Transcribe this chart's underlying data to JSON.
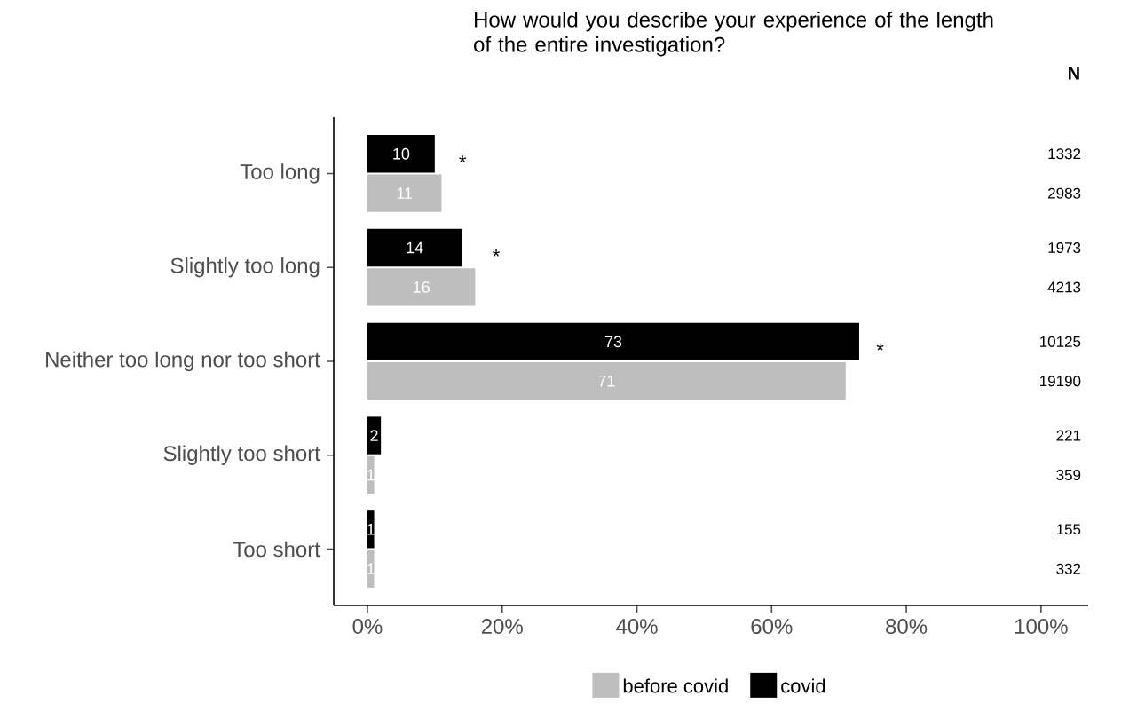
{
  "chart_data": {
    "type": "bar",
    "orientation": "horizontal",
    "title": "How would you describe your experience of the length of the entire investigation?",
    "categories": [
      "Too long",
      "Slightly too long",
      "Neither too long nor too short",
      "Slightly too short",
      "Too short"
    ],
    "series": [
      {
        "name": "before covid",
        "color": "#bebebe",
        "values": [
          11,
          16,
          71,
          1,
          1
        ]
      },
      {
        "name": "covid",
        "color": "#000000",
        "values": [
          10,
          14,
          73,
          2,
          1
        ]
      }
    ],
    "xlim": [
      -5,
      107
    ],
    "xticks": [
      {
        "value": 0,
        "label": "0%"
      },
      {
        "value": 20,
        "label": "20%"
      },
      {
        "value": 40,
        "label": "40%"
      },
      {
        "value": 60,
        "label": "60%"
      },
      {
        "value": 80,
        "label": "80%"
      },
      {
        "value": 100,
        "label": "100%"
      }
    ],
    "data_labels": true,
    "legend": "bottom",
    "grid": false,
    "annotations": [
      "N",
      "1332",
      "2983",
      "1973",
      "4213",
      "10125",
      "19190",
      "221",
      "359",
      "155",
      "332",
      "*",
      "*",
      "*"
    ]
  }
}
